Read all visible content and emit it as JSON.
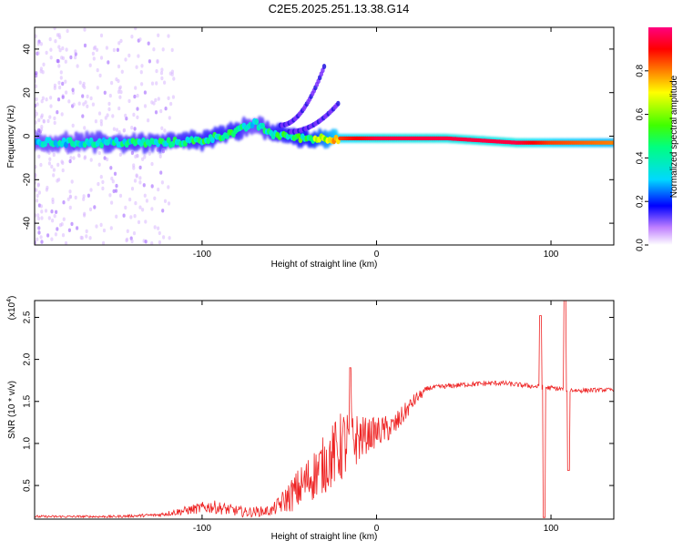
{
  "title": "C2E5.2025.251.13.38.G14",
  "chart_data": [
    {
      "type": "heatmap",
      "xlabel": "Height of straight line (km)",
      "ylabel": "Frequency (Hz)",
      "xlim": [
        -196,
        136
      ],
      "ylim": [
        -50,
        50
      ],
      "x_ticks": [
        -100,
        0,
        100
      ],
      "x_tick_labels": [
        "-100",
        "0",
        "100"
      ],
      "y_ticks": [
        -40,
        -20,
        0,
        20,
        40
      ],
      "y_tick_labels": [
        "-40",
        "-20",
        "0",
        "20",
        "40"
      ],
      "colorbar": {
        "label": "Normalized spectral amplitude",
        "range": [
          0,
          1
        ],
        "ticks": [
          0.0,
          0.2,
          0.4,
          0.6,
          0.8
        ],
        "tick_labels": [
          "0.0",
          "0.2",
          "0.4",
          "0.6",
          "0.8"
        ]
      },
      "ridge": [
        {
          "x": -196,
          "freq": -3,
          "amp": 0.35
        },
        {
          "x": -150,
          "freq": -3,
          "amp": 0.4
        },
        {
          "x": -120,
          "freq": -3,
          "amp": 0.42
        },
        {
          "x": -100,
          "freq": -2,
          "amp": 0.45
        },
        {
          "x": -80,
          "freq": 2,
          "amp": 0.45
        },
        {
          "x": -70,
          "freq": 6,
          "amp": 0.35
        },
        {
          "x": -60,
          "freq": 1,
          "amp": 0.45
        },
        {
          "x": -40,
          "freq": -1,
          "amp": 0.5
        },
        {
          "x": -22,
          "freq": -1,
          "amp": 0.85
        },
        {
          "x": 0,
          "freq": -1,
          "amp": 0.95
        },
        {
          "x": 40,
          "freq": -1,
          "amp": 0.95
        },
        {
          "x": 80,
          "freq": -3,
          "amp": 0.95
        },
        {
          "x": 100,
          "freq": -3,
          "amp": 0.85
        },
        {
          "x": 136,
          "freq": -3,
          "amp": 0.8
        }
      ],
      "branches": [
        {
          "from_x": -55,
          "to_x": -30,
          "from_freq": 5,
          "to_freq": 32
        },
        {
          "from_x": -50,
          "to_x": -22,
          "from_freq": 2,
          "to_freq": 15
        }
      ]
    },
    {
      "type": "line",
      "xlabel": "Height of straight line (km)",
      "ylabel": "SNR (10 * v/v)",
      "y_multiplier_label": "(x10",
      "y_multiplier_exponent": "4",
      "y_multiplier_close": ")",
      "xlim": [
        -196,
        136
      ],
      "ylim": [
        0.1,
        2.7
      ],
      "x_ticks": [
        -100,
        0,
        100
      ],
      "x_tick_labels": [
        "-100",
        "0",
        "100"
      ],
      "y_ticks": [
        0.5,
        1.0,
        1.5,
        2.0,
        2.5
      ],
      "y_tick_labels": [
        "0.5",
        "1.0",
        "1.5",
        "2.0",
        "2.5"
      ],
      "series": [
        {
          "name": "SNR",
          "color": "#ee2222",
          "envelope": [
            {
              "x": -196,
              "y": 0.13,
              "noise": 0.015
            },
            {
              "x": -150,
              "y": 0.13,
              "noise": 0.015
            },
            {
              "x": -125,
              "y": 0.15,
              "noise": 0.02
            },
            {
              "x": -95,
              "y": 0.25,
              "noise": 0.08
            },
            {
              "x": -75,
              "y": 0.18,
              "noise": 0.06
            },
            {
              "x": -60,
              "y": 0.2,
              "noise": 0.06
            },
            {
              "x": -45,
              "y": 0.45,
              "noise": 0.25
            },
            {
              "x": -30,
              "y": 0.75,
              "noise": 0.35
            },
            {
              "x": -18,
              "y": 1.0,
              "noise": 0.45
            },
            {
              "x": -5,
              "y": 1.1,
              "noise": 0.2
            },
            {
              "x": 10,
              "y": 1.2,
              "noise": 0.15
            },
            {
              "x": 22,
              "y": 1.52,
              "noise": 0.08
            },
            {
              "x": 30,
              "y": 1.66,
              "noise": 0.03
            },
            {
              "x": 50,
              "y": 1.7,
              "noise": 0.03
            },
            {
              "x": 70,
              "y": 1.72,
              "noise": 0.03
            },
            {
              "x": 90,
              "y": 1.68,
              "noise": 0.03
            },
            {
              "x": 115,
              "y": 1.63,
              "noise": 0.03
            },
            {
              "x": 136,
              "y": 1.64,
              "noise": 0.02
            }
          ],
          "spikes": [
            {
              "x": -15,
              "y": 1.9
            },
            {
              "x": 94,
              "y": 2.52
            },
            {
              "x": 96,
              "y": 0.12
            },
            {
              "x": 108,
              "y": 2.7
            },
            {
              "x": 110,
              "y": 0.68
            }
          ]
        }
      ]
    }
  ]
}
